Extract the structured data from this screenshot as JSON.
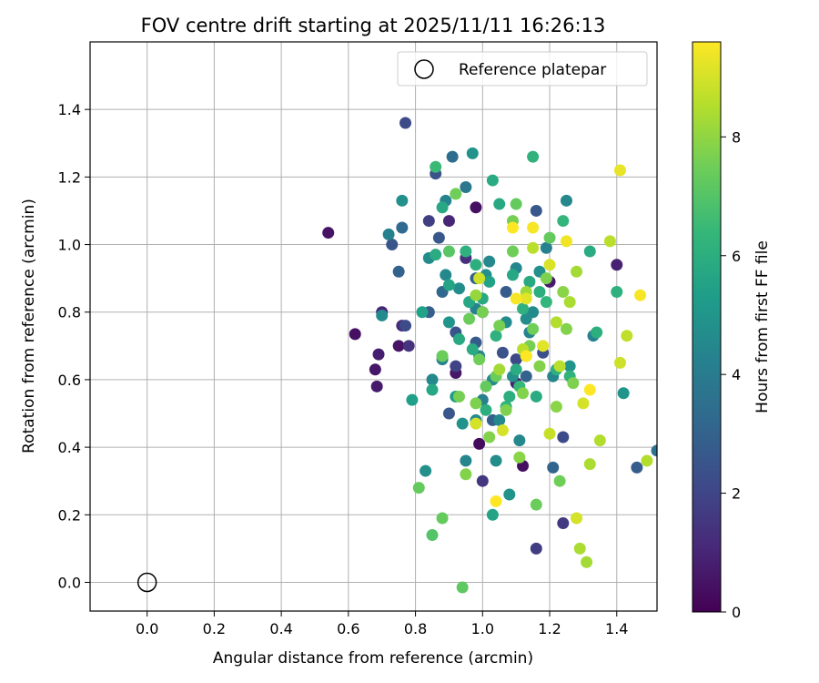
{
  "chart_data": {
    "type": "scatter",
    "title": "FOV centre drift starting at 2025/11/11 16:26:13",
    "xlabel": "Angular distance from reference (arcmin)",
    "ylabel": "Rotation from reference (arcmin)",
    "xlim": [
      -0.17,
      1.52
    ],
    "ylim": [
      -0.085,
      1.6
    ],
    "xticks": [
      0.0,
      0.2,
      0.4,
      0.6,
      0.8,
      1.0,
      1.2,
      1.4
    ],
    "yticks": [
      0.0,
      0.2,
      0.4,
      0.6,
      0.8,
      1.0,
      1.2,
      1.4
    ],
    "xtick_labels": [
      "0.0",
      "0.2",
      "0.4",
      "0.6",
      "0.8",
      "1.0",
      "1.2",
      "1.4"
    ],
    "ytick_labels": [
      "0.0",
      "0.2",
      "0.4",
      "0.6",
      "0.8",
      "1.0",
      "1.2",
      "1.4"
    ],
    "grid": true,
    "legend": {
      "position": "top-right",
      "entries": [
        "Reference platepar"
      ]
    },
    "reference_point": {
      "x": 0.0,
      "y": 0.0,
      "label": "Reference platepar"
    },
    "colorbar": {
      "label": "Hours from first FF file",
      "colormap": "viridis",
      "range": [
        0,
        9.6
      ],
      "ticks": [
        0,
        2,
        4,
        6,
        8
      ],
      "tick_labels": [
        "0",
        "2",
        "4",
        "6",
        "8"
      ]
    },
    "series": [
      {
        "points": [
          [
            0.54,
            1.035,
            0.5
          ],
          [
            0.62,
            0.735,
            0.4
          ],
          [
            0.68,
            0.63,
            0.6
          ],
          [
            0.685,
            0.58,
            0.7
          ],
          [
            0.69,
            0.675,
            0.8
          ],
          [
            0.7,
            0.8,
            1.0
          ],
          [
            0.75,
            0.7,
            0.5
          ],
          [
            0.76,
            0.76,
            1.2
          ],
          [
            0.78,
            0.7,
            1.4
          ],
          [
            0.77,
            1.36,
            2.2
          ],
          [
            0.84,
            1.07,
            1.8
          ],
          [
            0.9,
            1.07,
            1.0
          ],
          [
            0.98,
            1.11,
            0.4
          ],
          [
            0.99,
            0.41,
            0.3
          ],
          [
            0.92,
            0.62,
            0.6
          ],
          [
            0.95,
            0.96,
            1.3
          ],
          [
            1.0,
            0.3,
            1.5
          ],
          [
            1.1,
            0.59,
            0.9
          ],
          [
            1.12,
            0.345,
            0.4
          ],
          [
            1.16,
            0.1,
            1.7
          ],
          [
            1.24,
            0.175,
            1.6
          ],
          [
            1.4,
            0.94,
            0.9
          ],
          [
            1.2,
            0.89,
            0.7
          ],
          [
            0.73,
            1.0,
            2.5
          ],
          [
            0.75,
            0.92,
            3.0
          ],
          [
            0.76,
            1.05,
            3.3
          ],
          [
            0.77,
            0.76,
            2.2
          ],
          [
            0.86,
            1.21,
            2.5
          ],
          [
            0.87,
            1.02,
            2.6
          ],
          [
            0.91,
            1.26,
            3.4
          ],
          [
            0.92,
            0.74,
            2.5
          ],
          [
            0.84,
            0.8,
            2.8
          ],
          [
            0.88,
            0.86,
            3.2
          ],
          [
            0.9,
            0.5,
            2.6
          ],
          [
            0.92,
            0.64,
            1.9
          ],
          [
            0.98,
            0.71,
            2.7
          ],
          [
            1.06,
            0.68,
            2.4
          ],
          [
            1.03,
            0.48,
            2.9
          ],
          [
            1.1,
            0.66,
            2.1
          ],
          [
            1.13,
            0.61,
            3.0
          ],
          [
            1.18,
            0.68,
            2.3
          ],
          [
            1.21,
            0.34,
            3.1
          ],
          [
            1.46,
            0.34,
            2.8
          ],
          [
            1.52,
            0.39,
            3.6
          ],
          [
            1.16,
            1.1,
            2.6
          ],
          [
            1.0,
            0.8,
            3.4
          ],
          [
            0.95,
            1.17,
            3.8
          ],
          [
            0.98,
            0.9,
            2.9
          ],
          [
            1.07,
            0.86,
            2.8
          ],
          [
            1.24,
            0.43,
            2.2
          ],
          [
            0.7,
            0.79,
            4.6
          ],
          [
            0.72,
            1.03,
            4.2
          ],
          [
            0.76,
            1.13,
            4.8
          ],
          [
            0.79,
            0.54,
            5.4
          ],
          [
            0.83,
            0.33,
            4.8
          ],
          [
            0.84,
            0.96,
            4.6
          ],
          [
            0.85,
            0.6,
            4.5
          ],
          [
            0.88,
            0.66,
            4.3
          ],
          [
            0.89,
            0.91,
            4.5
          ],
          [
            0.89,
            1.13,
            4.3
          ],
          [
            0.9,
            0.77,
            5.0
          ],
          [
            0.92,
            0.55,
            5.2
          ],
          [
            0.93,
            0.87,
            4.7
          ],
          [
            0.94,
            0.47,
            4.9
          ],
          [
            0.95,
            0.36,
            4.4
          ],
          [
            0.97,
            1.27,
            4.9
          ],
          [
            0.98,
            0.81,
            4.3
          ],
          [
            0.99,
            0.67,
            4.4
          ],
          [
            1.0,
            0.54,
            4.2
          ],
          [
            1.01,
            0.91,
            4.8
          ],
          [
            1.02,
            0.95,
            4.5
          ],
          [
            1.03,
            0.6,
            4.6
          ],
          [
            1.04,
            0.36,
            4.7
          ],
          [
            1.05,
            0.48,
            4.5
          ],
          [
            1.07,
            0.77,
            4.6
          ],
          [
            1.08,
            0.26,
            4.9
          ],
          [
            1.09,
            0.61,
            4.8
          ],
          [
            1.1,
            0.93,
            4.4
          ],
          [
            1.11,
            0.42,
            4.5
          ],
          [
            1.13,
            0.78,
            4.7
          ],
          [
            1.14,
            0.74,
            4.3
          ],
          [
            1.15,
            0.8,
            4.6
          ],
          [
            1.17,
            0.92,
            4.8
          ],
          [
            1.19,
            0.99,
            4.2
          ],
          [
            1.21,
            0.61,
            4.4
          ],
          [
            1.25,
            1.13,
            4.5
          ],
          [
            1.33,
            0.73,
            4.3
          ],
          [
            1.42,
            0.56,
            5.0
          ],
          [
            1.26,
            0.64,
            5.0
          ],
          [
            0.98,
            0.48,
            4.6
          ],
          [
            0.82,
            0.8,
            5.5
          ],
          [
            0.85,
            0.57,
            5.7
          ],
          [
            0.86,
            0.97,
            5.9
          ],
          [
            0.88,
            1.11,
            5.7
          ],
          [
            0.9,
            0.88,
            5.6
          ],
          [
            0.93,
            0.72,
            5.8
          ],
          [
            0.95,
            0.98,
            6.1
          ],
          [
            0.96,
            0.83,
            5.7
          ],
          [
            0.97,
            0.69,
            5.9
          ],
          [
            0.98,
            0.94,
            6.0
          ],
          [
            1.0,
            0.84,
            5.8
          ],
          [
            1.01,
            0.51,
            6.0
          ],
          [
            1.02,
            0.89,
            5.5
          ],
          [
            1.03,
            0.2,
            5.6
          ],
          [
            1.03,
            1.19,
            5.9
          ],
          [
            1.04,
            0.73,
            6.1
          ],
          [
            1.05,
            1.12,
            5.8
          ],
          [
            1.07,
            0.52,
            6.2
          ],
          [
            1.08,
            0.55,
            6.0
          ],
          [
            1.09,
            0.91,
            5.7
          ],
          [
            1.1,
            0.63,
            5.9
          ],
          [
            1.12,
            0.81,
            6.1
          ],
          [
            1.14,
            0.89,
            5.8
          ],
          [
            1.15,
            1.26,
            6.2
          ],
          [
            1.16,
            0.55,
            5.9
          ],
          [
            1.17,
            0.86,
            6.0
          ],
          [
            1.19,
            0.83,
            6.3
          ],
          [
            1.22,
            0.63,
            6.1
          ],
          [
            1.24,
            1.07,
            6.3
          ],
          [
            1.26,
            0.61,
            6.2
          ],
          [
            1.32,
            0.98,
            5.9
          ],
          [
            1.34,
            0.74,
            6.0
          ],
          [
            1.4,
            0.86,
            6.1
          ],
          [
            0.86,
            1.23,
            6.5
          ],
          [
            0.88,
            0.67,
            6.6
          ],
          [
            1.11,
            0.58,
            6.4
          ],
          [
            1.13,
            0.67,
            6.5
          ],
          [
            0.81,
            0.28,
            7.3
          ],
          [
            0.85,
            0.14,
            7.0
          ],
          [
            0.88,
            0.19,
            7.3
          ],
          [
            0.88,
            0.67,
            7.4
          ],
          [
            0.9,
            0.98,
            7.1
          ],
          [
            0.92,
            1.15,
            7.5
          ],
          [
            0.93,
            0.55,
            7.6
          ],
          [
            0.94,
            -0.015,
            7.2
          ],
          [
            0.95,
            0.32,
            7.8
          ],
          [
            0.96,
            0.78,
            7.4
          ],
          [
            0.98,
            0.53,
            7.7
          ],
          [
            0.99,
            0.66,
            7.5
          ],
          [
            1.0,
            0.8,
            7.6
          ],
          [
            1.01,
            0.58,
            7.3
          ],
          [
            1.02,
            0.43,
            7.8
          ],
          [
            1.04,
            0.61,
            7.4
          ],
          [
            1.05,
            0.76,
            7.6
          ],
          [
            1.07,
            0.51,
            7.7
          ],
          [
            1.09,
            0.98,
            7.5
          ],
          [
            1.1,
            1.12,
            7.3
          ],
          [
            1.11,
            0.37,
            7.9
          ],
          [
            1.12,
            0.56,
            7.8
          ],
          [
            1.14,
            0.7,
            7.6
          ],
          [
            1.15,
            0.75,
            7.5
          ],
          [
            1.16,
            0.23,
            7.4
          ],
          [
            1.17,
            0.64,
            7.8
          ],
          [
            1.19,
            0.9,
            7.7
          ],
          [
            1.2,
            1.02,
            7.3
          ],
          [
            1.22,
            0.52,
            7.9
          ],
          [
            1.23,
            0.3,
            7.5
          ],
          [
            1.24,
            0.86,
            7.9
          ],
          [
            1.25,
            0.75,
            7.8
          ],
          [
            1.27,
            0.59,
            7.7
          ],
          [
            1.28,
            0.92,
            8.3
          ],
          [
            1.29,
            0.1,
            8.4
          ],
          [
            1.31,
            0.06,
            8.3
          ],
          [
            1.12,
            0.69,
            8.6
          ],
          [
            1.15,
            0.99,
            8.6
          ],
          [
            1.09,
            1.07,
            7.6
          ],
          [
            1.38,
            1.01,
            8.6
          ],
          [
            1.49,
            0.36,
            8.5
          ],
          [
            1.35,
            0.42,
            8.5
          ],
          [
            1.43,
            0.73,
            8.7
          ],
          [
            1.32,
            0.35,
            8.4
          ],
          [
            1.22,
            0.77,
            8.5
          ],
          [
            1.13,
            0.86,
            8.2
          ],
          [
            1.05,
            0.63,
            8.3
          ],
          [
            0.98,
            0.85,
            8.1
          ],
          [
            1.2,
            0.44,
            8.8
          ],
          [
            1.3,
            0.53,
            9.0
          ],
          [
            1.26,
            0.83,
            8.4
          ],
          [
            1.41,
            0.65,
            8.9
          ],
          [
            1.23,
            0.64,
            8.6
          ],
          [
            1.41,
            1.22,
            9.3
          ],
          [
            1.47,
            0.85,
            9.5
          ],
          [
            1.32,
            0.57,
            9.6
          ],
          [
            1.06,
            0.45,
            9.0
          ],
          [
            1.13,
            0.84,
            9.2
          ],
          [
            1.15,
            1.05,
            9.5
          ],
          [
            1.2,
            0.94,
            9.1
          ],
          [
            1.25,
            1.01,
            9.4
          ],
          [
            1.04,
            0.24,
            9.6
          ],
          [
            1.13,
            0.67,
            9.7
          ],
          [
            0.99,
            0.9,
            8.9
          ],
          [
            1.28,
            0.19,
            9.0
          ],
          [
            1.09,
            1.05,
            9.7
          ],
          [
            0.98,
            0.47,
            9.0
          ],
          [
            1.1,
            0.84,
            9.5
          ],
          [
            1.18,
            0.7,
            9.2
          ]
        ]
      }
    ]
  }
}
